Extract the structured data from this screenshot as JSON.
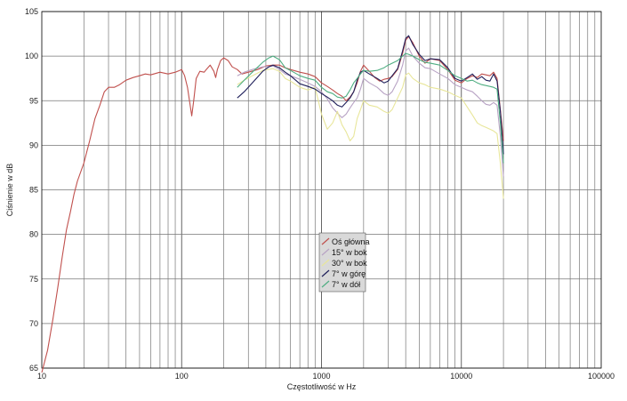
{
  "chart_data": {
    "type": "line",
    "title": "",
    "xlabel": "Częstotliwość w Hz",
    "ylabel": "Ciśnienie w dB",
    "x_scale": "log",
    "xlim": [
      10,
      100000
    ],
    "ylim": [
      65,
      105
    ],
    "x_ticks": [
      10,
      100,
      1000,
      10000,
      100000
    ],
    "y_ticks": [
      65,
      70,
      75,
      80,
      85,
      90,
      95,
      100,
      105
    ],
    "grid": true,
    "legend_position": "center",
    "series": [
      {
        "name": "Oś główna",
        "color": "#c0504d",
        "points": [
          [
            10,
            64.5
          ],
          [
            11,
            67
          ],
          [
            12,
            70.5
          ],
          [
            13,
            74
          ],
          [
            14,
            77.5
          ],
          [
            15,
            80.5
          ],
          [
            16,
            82.5
          ],
          [
            17,
            84.5
          ],
          [
            18,
            86
          ],
          [
            20,
            88
          ],
          [
            22,
            90.5
          ],
          [
            24,
            93
          ],
          [
            26,
            94.5
          ],
          [
            28,
            96
          ],
          [
            30,
            96.5
          ],
          [
            33,
            96.5
          ],
          [
            36,
            96.8
          ],
          [
            40,
            97.3
          ],
          [
            45,
            97.6
          ],
          [
            50,
            97.8
          ],
          [
            55,
            98
          ],
          [
            60,
            97.9
          ],
          [
            70,
            98.2
          ],
          [
            80,
            98
          ],
          [
            90,
            98.2
          ],
          [
            100,
            98.5
          ],
          [
            105,
            97.8
          ],
          [
            110,
            96.5
          ],
          [
            115,
            94.5
          ],
          [
            118,
            93.3
          ],
          [
            122,
            95
          ],
          [
            127,
            97.5
          ],
          [
            135,
            98.3
          ],
          [
            145,
            98.2
          ],
          [
            150,
            98.5
          ],
          [
            160,
            99
          ],
          [
            170,
            98.3
          ],
          [
            175,
            97.6
          ],
          [
            180,
            98.5
          ],
          [
            190,
            99.5
          ],
          [
            200,
            99.8
          ],
          [
            215,
            99.5
          ],
          [
            230,
            98.8
          ],
          [
            250,
            98.5
          ],
          [
            270,
            98
          ],
          [
            300,
            98.2
          ],
          [
            350,
            98.5
          ],
          [
            400,
            98.9
          ],
          [
            450,
            99
          ],
          [
            500,
            99
          ],
          [
            550,
            98.7
          ],
          [
            600,
            98.5
          ],
          [
            700,
            98.2
          ],
          [
            800,
            98
          ],
          [
            900,
            97.7
          ],
          [
            1000,
            97
          ],
          [
            1100,
            96.6
          ],
          [
            1200,
            96.2
          ],
          [
            1300,
            95.8
          ],
          [
            1400,
            95.5
          ],
          [
            1500,
            95
          ],
          [
            1600,
            95.4
          ],
          [
            1700,
            96
          ],
          [
            1800,
            97
          ],
          [
            1900,
            98.3
          ],
          [
            2000,
            99
          ],
          [
            2200,
            98.3
          ],
          [
            2400,
            97.6
          ],
          [
            2600,
            97.2
          ],
          [
            2800,
            97.4
          ],
          [
            3000,
            97.5
          ],
          [
            3200,
            97.7
          ],
          [
            3500,
            98.5
          ],
          [
            3800,
            100.3
          ],
          [
            4000,
            101.8
          ],
          [
            4200,
            102.2
          ],
          [
            4500,
            101.5
          ],
          [
            5000,
            100
          ],
          [
            5500,
            99.2
          ],
          [
            6000,
            99.7
          ],
          [
            7000,
            99.5
          ],
          [
            8000,
            98.5
          ],
          [
            9000,
            97.3
          ],
          [
            10000,
            97
          ],
          [
            11000,
            97.5
          ],
          [
            12000,
            97.8
          ],
          [
            13000,
            97.6
          ],
          [
            14000,
            98
          ],
          [
            15000,
            97.9
          ],
          [
            16000,
            97.8
          ],
          [
            17000,
            98.2
          ],
          [
            18000,
            97.5
          ],
          [
            19000,
            94
          ],
          [
            20000,
            90.5
          ]
        ]
      },
      {
        "name": "15° w bok",
        "color": "#b8a3c4",
        "points": [
          [
            250,
            97.8
          ],
          [
            280,
            98.2
          ],
          [
            320,
            98.5
          ],
          [
            380,
            98.8
          ],
          [
            450,
            98.9
          ],
          [
            500,
            98.5
          ],
          [
            550,
            98
          ],
          [
            600,
            97.8
          ],
          [
            700,
            97.4
          ],
          [
            800,
            97
          ],
          [
            900,
            96.6
          ],
          [
            1000,
            96
          ],
          [
            1100,
            95.2
          ],
          [
            1200,
            94.2
          ],
          [
            1300,
            93.6
          ],
          [
            1400,
            93.1
          ],
          [
            1500,
            93.5
          ],
          [
            1600,
            94.2
          ],
          [
            1700,
            94.8
          ],
          [
            1800,
            95.3
          ],
          [
            1900,
            96.3
          ],
          [
            2000,
            97.5
          ],
          [
            2200,
            97
          ],
          [
            2500,
            96.5
          ],
          [
            2800,
            95.8
          ],
          [
            3000,
            95.6
          ],
          [
            3200,
            96
          ],
          [
            3500,
            97.2
          ],
          [
            3800,
            99
          ],
          [
            4000,
            100.6
          ],
          [
            4200,
            100.9
          ],
          [
            4500,
            100
          ],
          [
            5000,
            99.2
          ],
          [
            5500,
            98.7
          ],
          [
            6000,
            98.6
          ],
          [
            7000,
            98
          ],
          [
            8000,
            97.5
          ],
          [
            9000,
            96.8
          ],
          [
            10000,
            96.5
          ],
          [
            11000,
            96.2
          ],
          [
            12000,
            96
          ],
          [
            13000,
            95.5
          ],
          [
            14000,
            95
          ],
          [
            15000,
            94.6
          ],
          [
            16000,
            94.5
          ],
          [
            17000,
            94.8
          ],
          [
            18000,
            94.5
          ],
          [
            19000,
            91
          ],
          [
            20000,
            86.5
          ]
        ]
      },
      {
        "name": "30° w bok",
        "color": "#e8e69a",
        "points": [
          [
            250,
            96.8
          ],
          [
            280,
            97.3
          ],
          [
            320,
            97.8
          ],
          [
            380,
            98.4
          ],
          [
            450,
            98.6
          ],
          [
            500,
            98.3
          ],
          [
            550,
            97.5
          ],
          [
            600,
            97.2
          ],
          [
            700,
            96.5
          ],
          [
            800,
            96.2
          ],
          [
            900,
            96.5
          ],
          [
            1000,
            93.5
          ],
          [
            1100,
            91.8
          ],
          [
            1200,
            92.5
          ],
          [
            1300,
            93.8
          ],
          [
            1400,
            92.3
          ],
          [
            1500,
            91.5
          ],
          [
            1600,
            90.5
          ],
          [
            1700,
            91
          ],
          [
            1800,
            93
          ],
          [
            1900,
            94
          ],
          [
            2000,
            95
          ],
          [
            2200,
            94.5
          ],
          [
            2500,
            94.3
          ],
          [
            2800,
            93.8
          ],
          [
            3000,
            93.6
          ],
          [
            3200,
            94
          ],
          [
            3500,
            95.3
          ],
          [
            3800,
            96.5
          ],
          [
            4000,
            97.9
          ],
          [
            4200,
            98.1
          ],
          [
            4500,
            97.5
          ],
          [
            5000,
            97
          ],
          [
            5500,
            96.8
          ],
          [
            6000,
            96.5
          ],
          [
            7000,
            96.3
          ],
          [
            8000,
            96
          ],
          [
            9000,
            95.6
          ],
          [
            10000,
            95.3
          ],
          [
            11000,
            94.3
          ],
          [
            12000,
            93.4
          ],
          [
            13000,
            92.5
          ],
          [
            14000,
            92.2
          ],
          [
            15000,
            92
          ],
          [
            16000,
            91.8
          ],
          [
            17000,
            91.6
          ],
          [
            18000,
            91.3
          ],
          [
            19000,
            88
          ],
          [
            20000,
            84
          ]
        ]
      },
      {
        "name": "7° w górę",
        "color": "#1f1f5a",
        "points": [
          [
            250,
            95.3
          ],
          [
            280,
            96
          ],
          [
            320,
            97
          ],
          [
            380,
            98.3
          ],
          [
            420,
            98.8
          ],
          [
            450,
            99
          ],
          [
            500,
            98.7
          ],
          [
            550,
            98.2
          ],
          [
            600,
            97.8
          ],
          [
            700,
            96.9
          ],
          [
            800,
            96.6
          ],
          [
            900,
            96.3
          ],
          [
            1000,
            95.8
          ],
          [
            1100,
            95.4
          ],
          [
            1200,
            95
          ],
          [
            1300,
            94.5
          ],
          [
            1400,
            94.3
          ],
          [
            1500,
            94.8
          ],
          [
            1600,
            95.3
          ],
          [
            1700,
            96
          ],
          [
            1800,
            97.3
          ],
          [
            1900,
            98.2
          ],
          [
            2000,
            98.4
          ],
          [
            2200,
            98
          ],
          [
            2500,
            97.5
          ],
          [
            2800,
            97
          ],
          [
            3000,
            97.2
          ],
          [
            3200,
            97.8
          ],
          [
            3500,
            98.6
          ],
          [
            3800,
            100.6
          ],
          [
            4000,
            102
          ],
          [
            4200,
            102.3
          ],
          [
            4500,
            101.3
          ],
          [
            5000,
            100.2
          ],
          [
            5500,
            99.5
          ],
          [
            6000,
            99.7
          ],
          [
            7000,
            99.6
          ],
          [
            8000,
            98.7
          ],
          [
            9000,
            97.5
          ],
          [
            10000,
            97.2
          ],
          [
            11000,
            97.6
          ],
          [
            12000,
            98
          ],
          [
            13000,
            97.4
          ],
          [
            14000,
            97.7
          ],
          [
            15000,
            97.3
          ],
          [
            16000,
            97.2
          ],
          [
            17000,
            98
          ],
          [
            18000,
            97.2
          ],
          [
            19000,
            93.8
          ],
          [
            20000,
            89
          ]
        ]
      },
      {
        "name": "7° w dół",
        "color": "#4fae82",
        "points": [
          [
            250,
            96.5
          ],
          [
            280,
            97.3
          ],
          [
            320,
            98.2
          ],
          [
            380,
            99.3
          ],
          [
            420,
            99.8
          ],
          [
            450,
            100
          ],
          [
            500,
            99.6
          ],
          [
            550,
            98.7
          ],
          [
            600,
            98.4
          ],
          [
            700,
            97.8
          ],
          [
            800,
            97.5
          ],
          [
            900,
            97.3
          ],
          [
            1000,
            96.5
          ],
          [
            1100,
            96
          ],
          [
            1200,
            95.8
          ],
          [
            1300,
            95.4
          ],
          [
            1400,
            95.3
          ],
          [
            1500,
            95.5
          ],
          [
            1600,
            96.2
          ],
          [
            1700,
            97
          ],
          [
            1800,
            97.5
          ],
          [
            1900,
            98
          ],
          [
            2000,
            98.4
          ],
          [
            2200,
            98.3
          ],
          [
            2500,
            98.4
          ],
          [
            2800,
            98.7
          ],
          [
            3000,
            99
          ],
          [
            3200,
            99.2
          ],
          [
            3500,
            99.5
          ],
          [
            3800,
            100
          ],
          [
            4000,
            100.3
          ],
          [
            4200,
            100.2
          ],
          [
            4500,
            100
          ],
          [
            5000,
            99.6
          ],
          [
            5500,
            99.3
          ],
          [
            6000,
            99.2
          ],
          [
            7000,
            99
          ],
          [
            8000,
            98.4
          ],
          [
            9000,
            97.8
          ],
          [
            10000,
            97.5
          ],
          [
            11000,
            97.2
          ],
          [
            12000,
            97.3
          ],
          [
            13000,
            97
          ],
          [
            14000,
            96.8
          ],
          [
            15000,
            96.7
          ],
          [
            16000,
            96.6
          ],
          [
            17000,
            96.5
          ],
          [
            18000,
            96.3
          ],
          [
            19000,
            92.5
          ],
          [
            20000,
            88
          ]
        ]
      }
    ]
  }
}
